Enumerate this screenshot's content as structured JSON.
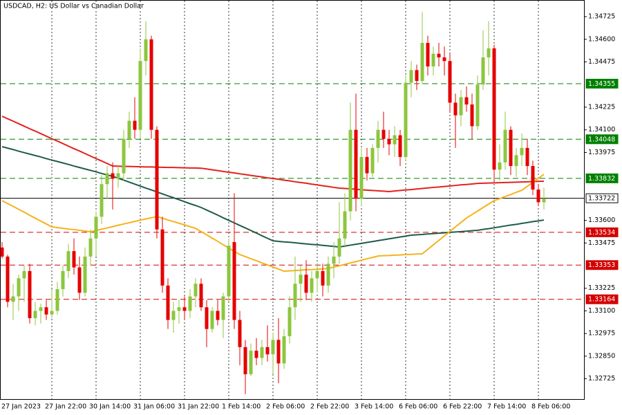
{
  "chart_data": {
    "type": "candlestick",
    "title": "USDCAD, H2:  US Dollar vs Canadian Dollar",
    "categories": [
      "27 Jan 2023",
      null,
      null,
      null,
      null,
      null,
      null,
      null,
      null,
      "27 Jan 22:00",
      null,
      null,
      null,
      null,
      null,
      null,
      null,
      "30 Jan 14:00",
      null,
      null,
      null,
      null,
      null,
      null,
      null,
      "31 Jan 06:00",
      null,
      null,
      null,
      null,
      null,
      null,
      null,
      "31 Jan 22:00",
      null,
      null,
      null,
      null,
      null,
      null,
      null,
      "1 Feb 14:00",
      null,
      null,
      null,
      null,
      null,
      null,
      null,
      "2 Feb 06:00",
      null,
      null,
      null,
      null,
      null,
      null,
      null,
      "2 Feb 22:00",
      null,
      null,
      null,
      null,
      null,
      null,
      null,
      "3 Feb 14:00",
      null,
      null,
      null,
      null,
      null,
      null,
      null,
      "6 Feb 06:00",
      null,
      null,
      null,
      null,
      null,
      null,
      null,
      "6 Feb 22:00",
      null,
      null,
      null,
      null,
      null,
      null,
      null,
      "7 Feb 14:00",
      null,
      null,
      null,
      null,
      null,
      null,
      null,
      "8 Feb 06:00",
      null
    ],
    "open": [
      1.3345,
      1.334,
      1.3315,
      1.3318,
      1.3328,
      1.3332,
      1.3306,
      1.331,
      1.3312,
      1.3308,
      1.331,
      1.3322,
      1.3332,
      1.3343,
      1.3334,
      1.332,
      1.334,
      1.335,
      1.3362,
      1.338,
      1.3386,
      1.3383,
      1.3386,
      1.3405,
      1.3415,
      1.341,
      1.3448,
      1.346,
      1.341,
      1.3355,
      1.3324,
      1.3305,
      1.331,
      1.3312,
      1.331,
      1.3318,
      1.3325,
      1.3312,
      1.33,
      1.331,
      1.3305,
      1.3318,
      1.3348,
      1.3305,
      1.329,
      1.3275,
      1.3288,
      1.3284,
      1.329,
      1.3286,
      1.3294,
      1.3281,
      1.3296,
      1.3312,
      1.3325,
      1.333,
      1.332,
      1.3328,
      1.3332,
      1.3324,
      1.3336,
      1.334,
      1.335,
      1.3365,
      1.341,
      1.3372,
      1.3395,
      1.3386,
      1.34,
      1.341,
      1.3405,
      1.3402,
      1.3407,
      1.3395,
      1.3436,
      1.3443,
      1.3437,
      1.3458,
      1.3445,
      1.3452,
      1.345,
      1.3448,
      1.3425,
      1.3418,
      1.3428,
      1.3424,
      1.3412,
      1.3435,
      1.345,
      1.3455,
      1.3388,
      1.3392,
      1.341,
      1.339,
      1.3396,
      1.34,
      1.339,
      1.3377,
      1.337
    ],
    "high": [
      1.3348,
      1.3341,
      1.3325,
      1.333,
      1.3335,
      1.3336,
      1.3315,
      1.3314,
      1.3316,
      1.3322,
      1.3326,
      1.3335,
      1.3347,
      1.335,
      1.334,
      1.3345,
      1.3355,
      1.3365,
      1.3385,
      1.339,
      1.3392,
      1.339,
      1.341,
      1.342,
      1.3428,
      1.3455,
      1.347,
      1.3462,
      1.3412,
      1.3362,
      1.3328,
      1.3315,
      1.3316,
      1.3318,
      1.3322,
      1.3328,
      1.3328,
      1.3316,
      1.3312,
      1.3316,
      1.332,
      1.335,
      1.3375,
      1.331,
      1.3294,
      1.3292,
      1.3295,
      1.3294,
      1.3302,
      1.3298,
      1.3306,
      1.33,
      1.3318,
      1.334,
      1.3335,
      1.3338,
      1.3332,
      1.3336,
      1.3336,
      1.334,
      1.3348,
      1.337,
      1.3375,
      1.3425,
      1.343,
      1.34,
      1.34,
      1.3402,
      1.3415,
      1.342,
      1.341,
      1.3412,
      1.341,
      1.344,
      1.3448,
      1.3446,
      1.3475,
      1.3462,
      1.3456,
      1.3458,
      1.3456,
      1.3452,
      1.343,
      1.3432,
      1.3434,
      1.343,
      1.344,
      1.3465,
      1.347,
      1.3457,
      1.3402,
      1.342,
      1.3412,
      1.34,
      1.3408,
      1.3405,
      1.3393,
      1.338,
      1.3378
    ],
    "low": [
      1.3339,
      1.3312,
      1.3305,
      1.331,
      1.3315,
      1.3303,
      1.3302,
      1.3303,
      1.3305,
      1.3306,
      1.3308,
      1.3318,
      1.3328,
      1.333,
      1.3316,
      1.3318,
      1.3335,
      1.334,
      1.3358,
      1.3372,
      1.3366,
      1.3378,
      1.3382,
      1.34,
      1.3405,
      1.3405,
      1.344,
      1.3405,
      1.335,
      1.332,
      1.33,
      1.3298,
      1.3303,
      1.3305,
      1.3306,
      1.3312,
      1.331,
      1.329,
      1.3298,
      1.3302,
      1.3295,
      1.3315,
      1.33,
      1.328,
      1.3264,
      1.3274,
      1.328,
      1.328,
      1.3282,
      1.3275,
      1.327,
      1.3278,
      1.3292,
      1.3305,
      1.3315,
      1.3316,
      1.3315,
      1.332,
      1.3318,
      1.332,
      1.3328,
      1.3336,
      1.3345,
      1.336,
      1.3365,
      1.3368,
      1.3382,
      1.3384,
      1.3392,
      1.34,
      1.3396,
      1.3395,
      1.339,
      1.3393,
      1.3428,
      1.3432,
      1.3435,
      1.344,
      1.344,
      1.3445,
      1.344,
      1.342,
      1.34,
      1.3412,
      1.342,
      1.3405,
      1.341,
      1.3432,
      1.344,
      1.3382,
      1.3382,
      1.3388,
      1.3385,
      1.3384,
      1.339,
      1.3385,
      1.3374,
      1.3368,
      1.3366
    ],
    "close": [
      1.334,
      1.3315,
      1.3318,
      1.3328,
      1.3332,
      1.3306,
      1.331,
      1.3312,
      1.3308,
      1.331,
      1.3322,
      1.3332,
      1.3343,
      1.3334,
      1.332,
      1.334,
      1.335,
      1.3362,
      1.338,
      1.3386,
      1.3383,
      1.3386,
      1.3405,
      1.3415,
      1.341,
      1.3448,
      1.346,
      1.341,
      1.3355,
      1.3324,
      1.3305,
      1.331,
      1.3312,
      1.331,
      1.3318,
      1.3325,
      1.3312,
      1.33,
      1.331,
      1.3305,
      1.3318,
      1.3346,
      1.3305,
      1.329,
      1.3275,
      1.3288,
      1.3284,
      1.329,
      1.3286,
      1.3294,
      1.3281,
      1.3296,
      1.3312,
      1.3325,
      1.333,
      1.332,
      1.3328,
      1.3332,
      1.3324,
      1.3336,
      1.334,
      1.335,
      1.3365,
      1.341,
      1.3372,
      1.3395,
      1.3386,
      1.34,
      1.341,
      1.3405,
      1.3402,
      1.3407,
      1.3395,
      1.3436,
      1.3443,
      1.3437,
      1.3458,
      1.3445,
      1.3452,
      1.345,
      1.3448,
      1.3425,
      1.3418,
      1.3428,
      1.3424,
      1.3412,
      1.3435,
      1.345,
      1.3455,
      1.3388,
      1.3392,
      1.341,
      1.339,
      1.3396,
      1.34,
      1.339,
      1.3377,
      1.337,
      1.3372
    ],
    "up_color": "#8cc63e",
    "down_color": "#e60000",
    "series": [
      {
        "color": "#e3211c",
        "values": [
          1.34175,
          1.34161,
          1.34148,
          1.34134,
          1.3412,
          1.34106,
          1.34093,
          1.34079,
          1.34065,
          1.34051,
          1.34038,
          1.34024,
          1.3401,
          1.33996,
          1.33983,
          1.33969,
          1.33955,
          1.33941,
          1.33928,
          1.33914,
          1.339,
          1.33899,
          1.33898,
          1.33898,
          1.33897,
          1.33896,
          1.33895,
          1.33895,
          1.33894,
          1.33893,
          1.33892,
          1.33892,
          1.33891,
          1.3389,
          1.33889,
          1.33889,
          1.33888,
          1.33884,
          1.33879,
          1.33875,
          1.3387,
          1.33866,
          1.33862,
          1.33857,
          1.33853,
          1.33848,
          1.33844,
          1.3384,
          1.33835,
          1.33831,
          1.33827,
          1.33822,
          1.33818,
          1.33813,
          1.33809,
          1.33805,
          1.338,
          1.33796,
          1.33791,
          1.33787,
          1.33782,
          1.33778,
          1.33776,
          1.33774,
          1.33772,
          1.33769,
          1.33767,
          1.33765,
          1.33763,
          1.33761,
          1.33759,
          1.33762,
          1.33765,
          1.33768,
          1.3377,
          1.33773,
          1.33776,
          1.33779,
          1.33782,
          1.33784,
          1.33787,
          1.3379,
          1.33793,
          1.33796,
          1.33798,
          1.33801,
          1.33804,
          1.33805,
          1.33806,
          1.33807,
          1.33808,
          1.33809,
          1.3381,
          1.33811,
          1.33812,
          1.33813,
          1.33814,
          1.33815,
          1.33816
        ]
      },
      {
        "color": "#1d5c4a",
        "values": [
          1.34007,
          1.33999,
          1.33991,
          1.33982,
          1.33974,
          1.33966,
          1.33958,
          1.3395,
          1.33941,
          1.33933,
          1.33925,
          1.33917,
          1.33909,
          1.339,
          1.33892,
          1.33884,
          1.33876,
          1.33868,
          1.33859,
          1.33851,
          1.33843,
          1.33832,
          1.33822,
          1.33811,
          1.338,
          1.33789,
          1.33778,
          1.33768,
          1.33757,
          1.33746,
          1.33735,
          1.33725,
          1.33714,
          1.33703,
          1.33692,
          1.33682,
          1.33671,
          1.33657,
          1.33643,
          1.33629,
          1.33614,
          1.336,
          1.33586,
          1.33572,
          1.33558,
          1.33544,
          1.3353,
          1.33515,
          1.33501,
          1.33487,
          1.33484,
          1.33481,
          1.33479,
          1.33476,
          1.33473,
          1.3347,
          1.33467,
          1.33465,
          1.33462,
          1.33459,
          1.33456,
          1.33453,
          1.33458,
          1.33463,
          1.33468,
          1.33473,
          1.33478,
          1.33483,
          1.33488,
          1.33493,
          1.33498,
          1.33503,
          1.33508,
          1.33513,
          1.33518,
          1.3352,
          1.33522,
          1.33525,
          1.33527,
          1.33529,
          1.33531,
          1.33534,
          1.33536,
          1.33538,
          1.3354,
          1.33543,
          1.33545,
          1.3355,
          1.33554,
          1.33559,
          1.33564,
          1.33569,
          1.33574,
          1.33578,
          1.33583,
          1.33588,
          1.33593,
          1.33597,
          1.33602
        ]
      },
      {
        "color": "#f6b21b",
        "values": [
          1.33709,
          1.33693,
          1.33677,
          1.33661,
          1.33645,
          1.33628,
          1.33612,
          1.33596,
          1.3358,
          1.33564,
          1.3356,
          1.33556,
          1.33552,
          1.33549,
          1.33545,
          1.33541,
          1.33537,
          1.33544,
          1.33551,
          1.33558,
          1.33565,
          1.33573,
          1.3358,
          1.33587,
          1.33594,
          1.33601,
          1.33608,
          1.33614,
          1.33621,
          1.33612,
          1.33602,
          1.33593,
          1.33584,
          1.33575,
          1.33565,
          1.33556,
          1.33538,
          1.3352,
          1.33502,
          1.33484,
          1.33465,
          1.33447,
          1.33429,
          1.33411,
          1.334,
          1.33388,
          1.33377,
          1.33365,
          1.33354,
          1.33342,
          1.33331,
          1.33319,
          1.33321,
          1.33323,
          1.33325,
          1.33327,
          1.33328,
          1.3333,
          1.33332,
          1.33334,
          1.33342,
          1.33349,
          1.33357,
          1.33365,
          1.33372,
          1.3338,
          1.33388,
          1.33395,
          1.33403,
          1.33405,
          1.33406,
          1.33408,
          1.33409,
          1.33411,
          1.33412,
          1.33414,
          1.33415,
          1.3344,
          1.33465,
          1.33489,
          1.33514,
          1.33539,
          1.33564,
          1.33588,
          1.33613,
          1.33632,
          1.33651,
          1.33671,
          1.3369,
          1.33709,
          1.3372,
          1.33732,
          1.33743,
          1.33755,
          1.33766,
          1.33788,
          1.3381,
          1.33832,
          1.33854
        ]
      }
    ],
    "levels": [
      {
        "value": 1.34355,
        "color": "#008000",
        "dashed": true
      },
      {
        "value": 1.34048,
        "color": "#008000",
        "dashed": true
      },
      {
        "value": 1.33832,
        "color": "#008000",
        "dashed": true
      },
      {
        "value": 1.33722,
        "color": "#000000",
        "dashed": false
      },
      {
        "value": 1.33534,
        "color": "#d40000",
        "dashed": true
      },
      {
        "value": 1.33353,
        "color": "#d40000",
        "dashed": true
      },
      {
        "value": 1.33164,
        "color": "#d40000",
        "dashed": true
      }
    ],
    "ylim": [
      1.32609,
      1.34817
    ],
    "yticks": [
      1.34725,
      {
        "value": 1.346,
        "label": "1.34600"
      },
      1.34475,
      1.34225,
      {
        "value": 1.341,
        "label": "1.34100"
      },
      1.33975,
      {
        "value": 1.336,
        "label": "1.33600"
      },
      1.33475,
      1.33225,
      {
        "value": 1.331,
        "label": "1.33100"
      },
      1.32975,
      {
        "value": 1.3285,
        "label": "1.32850"
      },
      1.32725
    ],
    "grid": true
  }
}
